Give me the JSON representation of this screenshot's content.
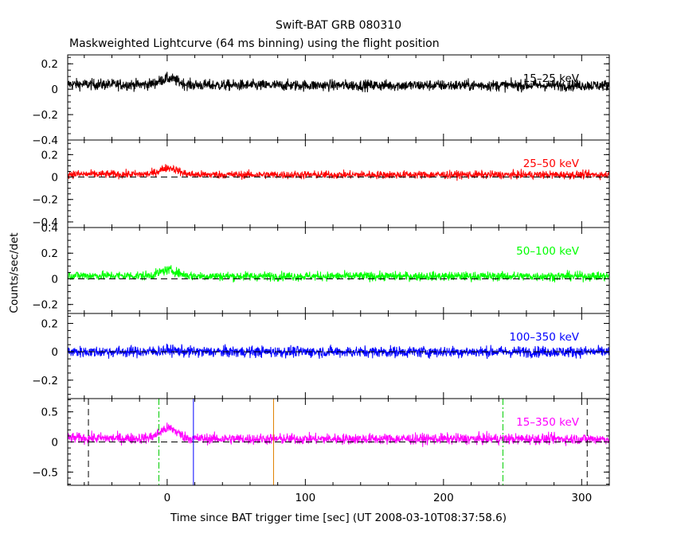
{
  "title": "Swift-BAT GRB 080310",
  "subtitle": "Maskweighted Lightcurve (64 ms binning) using the flight position",
  "ylabel": "Counts/sec/det",
  "xlabel": "Time since BAT trigger time [sec] (UT 2008-03-10T08:37:58.6)",
  "chart_data": {
    "type": "line",
    "shared_x": true,
    "xlim": [
      -72,
      320
    ],
    "xticks": [
      0,
      100,
      200,
      300
    ],
    "xtick_labels": [
      "0",
      "100",
      "200",
      "300"
    ],
    "panels": [
      {
        "band": "15–25 keV",
        "color": "#000000",
        "ylim": [
          -0.4,
          0.27
        ],
        "yticks": [
          0.2,
          0,
          -0.2,
          -0.4
        ],
        "ytick_labels": [
          "0.2",
          "0",
          "−0.2",
          "−0.4"
        ],
        "baseline": 0.03,
        "noise": 0.022,
        "bump": 0.05,
        "zero_line": false
      },
      {
        "band": "25–50 keV",
        "color": "#ff0000",
        "ylim": [
          -0.45,
          0.33
        ],
        "yticks": [
          0.2,
          0,
          -0.2,
          -0.4
        ],
        "ytick_labels": [
          "0.2",
          "0",
          "−0.2",
          "−0.4"
        ],
        "baseline": 0.02,
        "noise": 0.018,
        "bump": 0.06,
        "zero_line": true
      },
      {
        "band": "50–100 keV",
        "color": "#00ff00",
        "ylim": [
          -0.27,
          0.4
        ],
        "yticks": [
          0.4,
          0.2,
          0,
          -0.2
        ],
        "ytick_labels": [
          "0.4",
          "0.2",
          "0",
          "−0.2"
        ],
        "baseline": 0.02,
        "noise": 0.018,
        "bump": 0.045,
        "zero_line": true
      },
      {
        "band": "100–350 keV",
        "color": "#0000ff",
        "ylim": [
          -0.33,
          0.27
        ],
        "yticks": [
          0.2,
          0,
          -0.2
        ],
        "ytick_labels": [
          "0.2",
          "0",
          "−0.2"
        ],
        "baseline": 0.0,
        "noise": 0.02,
        "bump": 0.01,
        "zero_line": true
      },
      {
        "band": "15–350 keV",
        "color": "#ff00ff",
        "ylim": [
          -0.72,
          0.72
        ],
        "yticks": [
          0.5,
          0,
          -0.5
        ],
        "ytick_labels": [
          "0.5",
          "0",
          "−0.5"
        ],
        "baseline": 0.05,
        "noise": 0.045,
        "bump": 0.17,
        "zero_line": true
      }
    ],
    "vertical_markers": [
      {
        "x": -57,
        "color": "#000000",
        "style": "dashed"
      },
      {
        "x": -6,
        "color": "#00cc00",
        "style": "dashdot"
      },
      {
        "x": 19,
        "color": "#0000ff",
        "style": "solid"
      },
      {
        "x": 77,
        "color": "#e08000",
        "style": "solid"
      },
      {
        "x": 243,
        "color": "#00cc00",
        "style": "dashdot"
      },
      {
        "x": 304,
        "color": "#000000",
        "style": "dashed"
      }
    ]
  }
}
